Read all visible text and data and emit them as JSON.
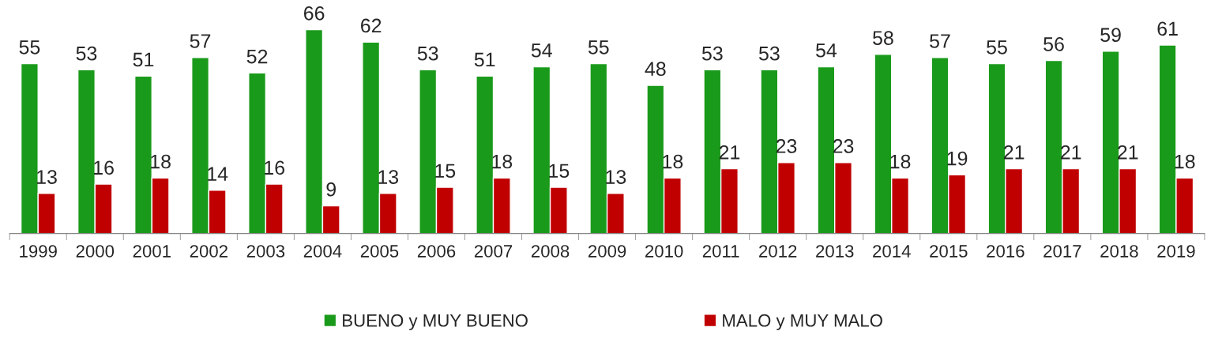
{
  "chart_data": {
    "type": "bar",
    "categories": [
      "1999",
      "2000",
      "2001",
      "2002",
      "2003",
      "2004",
      "2005",
      "2006",
      "2007",
      "2008",
      "2009",
      "2010",
      "2011",
      "2012",
      "2013",
      "2014",
      "2015",
      "2016",
      "2017",
      "2018",
      "2019"
    ],
    "series": [
      {
        "name": "BUENO y MUY BUENO",
        "color": "#1a9a1a",
        "values": [
          55,
          53,
          51,
          57,
          52,
          66,
          62,
          53,
          51,
          54,
          55,
          48,
          53,
          53,
          54,
          58,
          57,
          55,
          56,
          59,
          61
        ]
      },
      {
        "name": "MALO y MUY MALO",
        "color": "#c00000",
        "values": [
          13,
          16,
          18,
          14,
          16,
          9,
          13,
          15,
          18,
          15,
          13,
          18,
          21,
          23,
          23,
          18,
          19,
          21,
          21,
          21,
          18
        ]
      }
    ],
    "data_labels": true,
    "legend": "bottom",
    "grid": false
  }
}
